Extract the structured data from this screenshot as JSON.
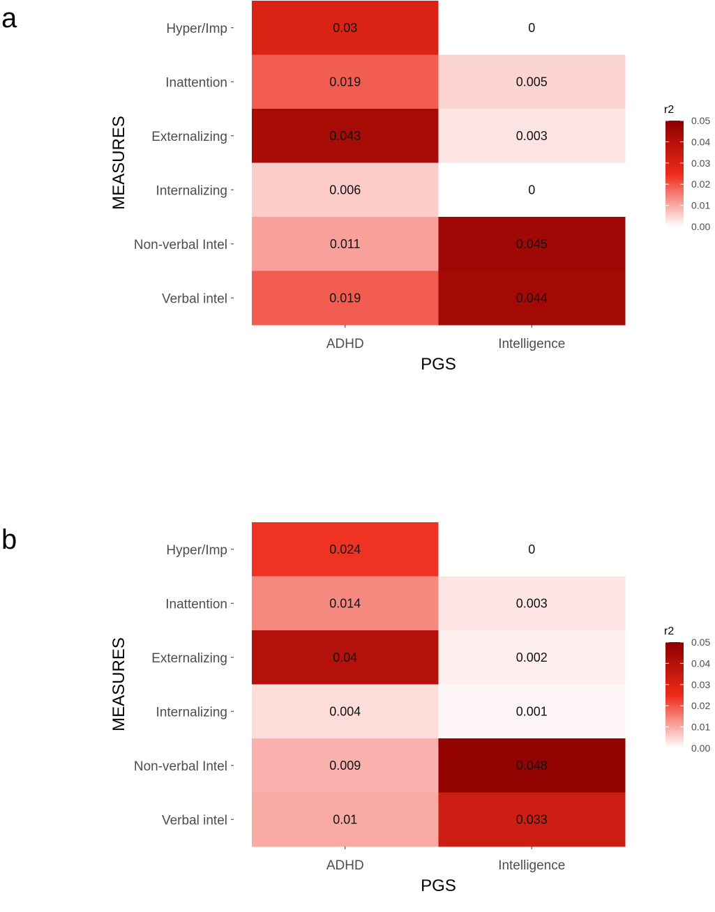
{
  "chart_data": [
    {
      "type": "heatmap",
      "panel_label": "a",
      "xlabel": "PGS",
      "ylabel": "MEASURES",
      "x_categories": [
        "ADHD",
        "Intelligence"
      ],
      "y_categories": [
        "Hyper/Imp",
        "Inattention",
        "Externalizing",
        "Internalizing",
        "Non-verbal Intel",
        "Verbal intel"
      ],
      "values": [
        [
          0.03,
          0
        ],
        [
          0.019,
          0.005
        ],
        [
          0.043,
          0.003
        ],
        [
          0.006,
          0
        ],
        [
          0.011,
          0.045
        ],
        [
          0.019,
          0.044
        ]
      ],
      "labels": [
        [
          "0.03",
          "0"
        ],
        [
          "0.019",
          "0.005"
        ],
        [
          "0.043",
          "0.003"
        ],
        [
          "0.006",
          "0"
        ],
        [
          "0.011",
          "0.045"
        ],
        [
          "0.019",
          "0.044"
        ]
      ],
      "legend": {
        "title": "r2",
        "placement": "right",
        "range": [
          0,
          0.05
        ],
        "ticks": [
          "0.00",
          "0.01",
          "0.02",
          "0.03",
          "0.04",
          "0.05"
        ],
        "color_low": "#ffffff",
        "color_mid": "#ee2a1a",
        "color_high": "#8b0000"
      }
    },
    {
      "type": "heatmap",
      "panel_label": "b",
      "xlabel": "PGS",
      "ylabel": "MEASURES",
      "x_categories": [
        "ADHD",
        "Intelligence"
      ],
      "y_categories": [
        "Hyper/Imp",
        "Inattention",
        "Externalizing",
        "Internalizing",
        "Non-verbal Intel",
        "Verbal intel"
      ],
      "values": [
        [
          0.024,
          0
        ],
        [
          0.014,
          0.003
        ],
        [
          0.04,
          0.002
        ],
        [
          0.004,
          0.001
        ],
        [
          0.009,
          0.048
        ],
        [
          0.01,
          0.033
        ]
      ],
      "labels": [
        [
          "0.024",
          "0"
        ],
        [
          "0.014",
          "0.003"
        ],
        [
          "0.04",
          "0.002"
        ],
        [
          "0.004",
          "0.001"
        ],
        [
          "0.009",
          "0.048"
        ],
        [
          "0.01",
          "0.033"
        ]
      ],
      "legend": {
        "title": "r2",
        "placement": "right",
        "range": [
          0,
          0.05
        ],
        "ticks": [
          "0.00",
          "0.01",
          "0.02",
          "0.03",
          "0.04",
          "0.05"
        ],
        "color_low": "#ffffff",
        "color_mid": "#ee2a1a",
        "color_high": "#8b0000"
      }
    }
  ]
}
